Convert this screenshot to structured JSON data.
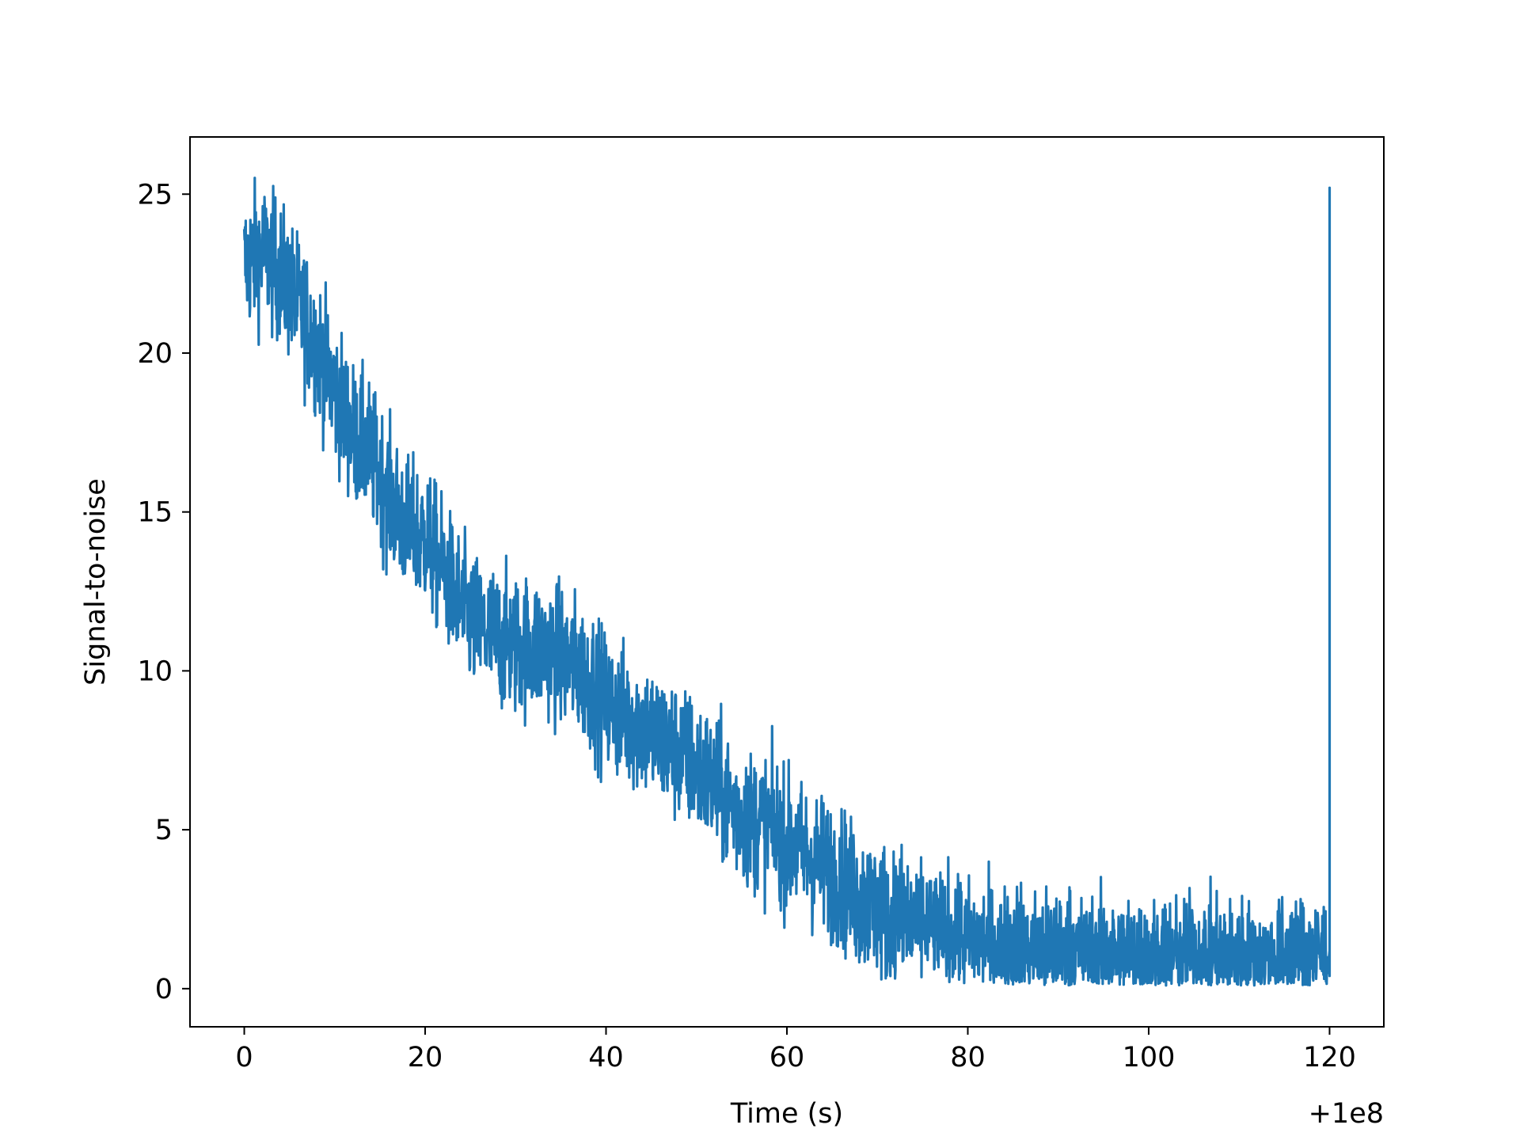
{
  "chart_data": {
    "type": "line",
    "title": "",
    "xlabel": "Time (s)",
    "ylabel": "Signal-to-noise",
    "x_offset_label": "+1e8",
    "xlim": [
      -6,
      126
    ],
    "ylim": [
      -1.2,
      26.8
    ],
    "xticks": [
      0,
      20,
      40,
      60,
      80,
      100,
      120
    ],
    "yticks": [
      0,
      5,
      10,
      15,
      20,
      25
    ],
    "grid": false,
    "series": [
      {
        "name": "",
        "color": "#1f77b4",
        "x": [
          0,
          2,
          4,
          6,
          8,
          10,
          12,
          14,
          16,
          18,
          20,
          22,
          24,
          26,
          28,
          30,
          32,
          34,
          36,
          38,
          40,
          42,
          44,
          46,
          48,
          50,
          52,
          54,
          56,
          58,
          60,
          62,
          64,
          66,
          68,
          70,
          72,
          74,
          76,
          78,
          80,
          82,
          84,
          86,
          88,
          90,
          92,
          94,
          96,
          98,
          100,
          102,
          104,
          106,
          108,
          110,
          112,
          114,
          116,
          118,
          119.8,
          120
        ],
        "y": [
          22.8,
          23.2,
          22.5,
          21.5,
          20.3,
          18.8,
          17.5,
          16.8,
          15.5,
          14.5,
          14.2,
          13.2,
          12.0,
          11.3,
          11.0,
          10.8,
          10.8,
          10.6,
          10.3,
          9.8,
          9.0,
          8.6,
          8.3,
          7.8,
          7.4,
          7.0,
          6.4,
          5.7,
          5.3,
          5.2,
          4.6,
          4.2,
          3.9,
          3.5,
          2.8,
          2.5,
          2.2,
          2.0,
          1.9,
          1.8,
          1.6,
          1.5,
          1.4,
          1.3,
          1.3,
          1.2,
          1.2,
          1.1,
          1.1,
          1.1,
          1.0,
          1.0,
          1.0,
          1.0,
          1.0,
          1.0,
          1.0,
          1.0,
          1.0,
          1.1,
          1.2,
          24.0
        ]
      }
    ]
  }
}
